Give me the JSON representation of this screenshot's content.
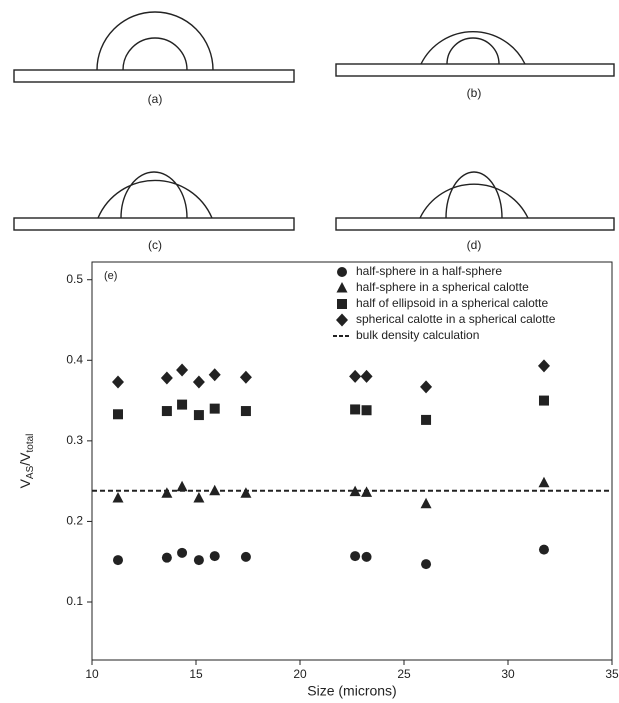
{
  "panels": [
    {
      "label": "(a)"
    },
    {
      "label": "(b)"
    },
    {
      "label": "(c)"
    },
    {
      "label": "(d)"
    }
  ],
  "chart_data": {
    "type": "scatter",
    "annotation": "(e)",
    "xlabel": "Size (microns)",
    "ylabel": [
      "V",
      "AS",
      "/V",
      "total"
    ],
    "x": [
      11.25,
      13.6,
      14.33,
      15.14,
      15.9,
      17.4,
      22.65,
      23.2,
      26.06,
      31.73
    ],
    "series": [
      {
        "name": "half-sphere in a half-sphere",
        "marker": "circle",
        "color": "#222222",
        "values": [
          0.152,
          0.155,
          0.161,
          0.152,
          0.157,
          0.156,
          0.157,
          0.156,
          0.147,
          0.165
        ]
      },
      {
        "name": "half-sphere in a spherical calotte",
        "marker": "triangle",
        "color": "#222222",
        "values": [
          0.229,
          0.235,
          0.243,
          0.229,
          0.238,
          0.235,
          0.237,
          0.236,
          0.222,
          0.248
        ]
      },
      {
        "name": "half of ellipsoid in a spherical calotte",
        "marker": "square",
        "color": "#222222",
        "values": [
          0.333,
          0.337,
          0.345,
          0.332,
          0.34,
          0.337,
          0.339,
          0.338,
          0.326,
          0.35
        ]
      },
      {
        "name": "spherical calotte in a spherical calotte",
        "marker": "diamond",
        "color": "#222222",
        "values": [
          0.373,
          0.378,
          0.388,
          0.373,
          0.382,
          0.379,
          0.38,
          0.38,
          0.367,
          0.393
        ]
      }
    ],
    "reference_line": {
      "name": "bulk density calculation",
      "value": 0.238,
      "style": "dashed",
      "color": "#222222"
    },
    "xlim": [
      10,
      35
    ],
    "xticks": [
      10,
      15,
      20,
      25,
      30,
      35
    ],
    "ylim": [
      0.028,
      0.522
    ],
    "yticks": [
      0.1,
      0.2,
      0.3,
      0.4,
      0.5
    ],
    "legend": "upper right",
    "grid": false
  }
}
